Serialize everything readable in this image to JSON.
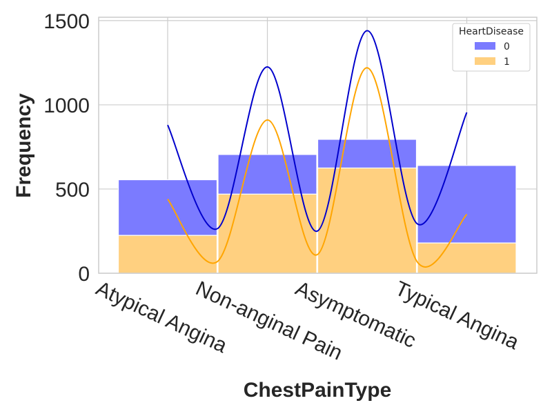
{
  "chart_data": {
    "type": "bar",
    "stacked": true,
    "categories": [
      "Atypical Angina",
      "Non-anginal Pain",
      "Asymptomatic",
      "Typical Angina"
    ],
    "series": [
      {
        "name": "0",
        "color": "#7b7bff",
        "values": [
          330,
          235,
          170,
          460
        ]
      },
      {
        "name": "1",
        "color": "#ffd080",
        "values": [
          225,
          470,
          625,
          180
        ]
      }
    ],
    "kde_curves": [
      {
        "series": "0",
        "color": "#0000cc",
        "points": [
          [
            0,
            880
          ],
          [
            0.5,
            265
          ],
          [
            1,
            1225
          ],
          [
            1.5,
            250
          ],
          [
            2,
            1440
          ],
          [
            2.5,
            295
          ],
          [
            3,
            955
          ]
        ]
      },
      {
        "series": "1",
        "color": "#ffa500",
        "points": [
          [
            0,
            440
          ],
          [
            0.5,
            70
          ],
          [
            1,
            910
          ],
          [
            1.5,
            110
          ],
          [
            2,
            1220
          ],
          [
            2.5,
            70
          ],
          [
            3,
            350
          ]
        ]
      }
    ],
    "xlabel": "ChestPainType",
    "ylabel": "Frequency",
    "ylim": [
      0,
      1520
    ],
    "yticks": [
      0,
      500,
      1000,
      1500
    ],
    "grid": true,
    "legend": {
      "title": "HeartDisease",
      "position": "top-right",
      "entries": [
        "0",
        "1"
      ]
    }
  }
}
